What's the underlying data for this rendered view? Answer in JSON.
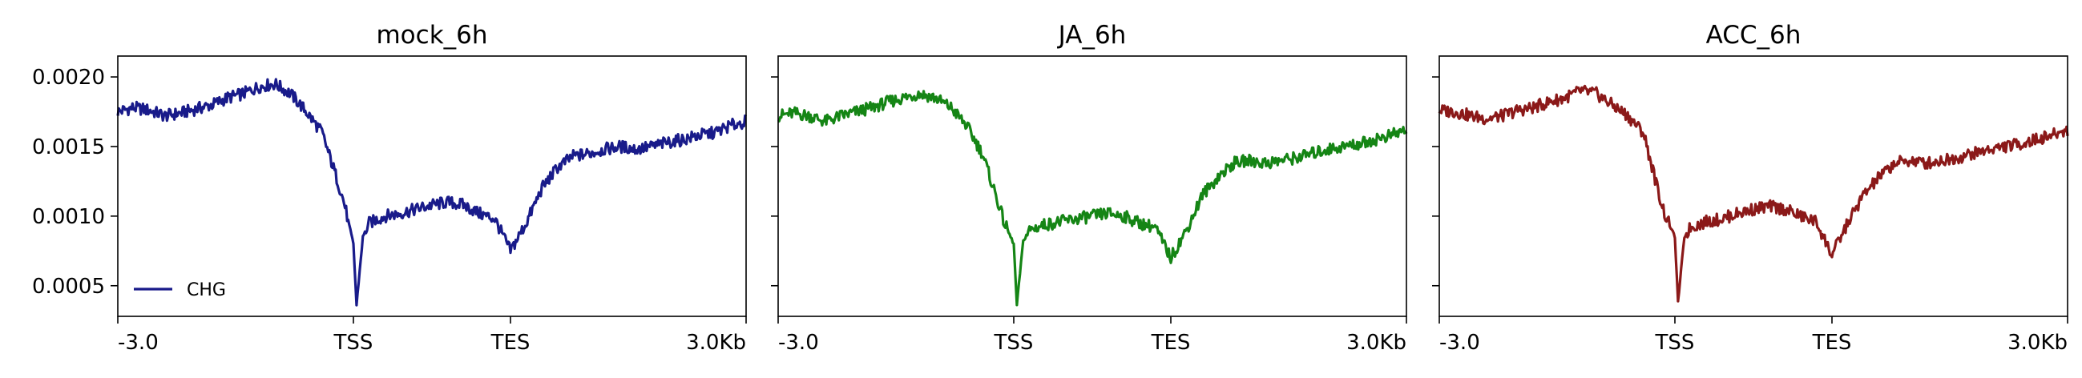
{
  "chart_data": [
    {
      "type": "line",
      "title": "mock_6h",
      "color": "#191b8a",
      "xlabel": "",
      "ylabel": "",
      "x_ticks": [
        "-3.0",
        "TSS",
        "TES",
        "3.0Kb"
      ],
      "ylim": [
        0.00028,
        0.00215
      ],
      "y_ticks": [
        "0.0005",
        "0.0010",
        "0.0015",
        "0.0020"
      ],
      "legend": {
        "label": "CHG",
        "position": "lower-left"
      },
      "series": [
        {
          "name": "CHG",
          "x": [
            0,
            5,
            10,
            15,
            20,
            25,
            30,
            35,
            40,
            45,
            50,
            55,
            60,
            65,
            70,
            72,
            75,
            76,
            78,
            80,
            85,
            90,
            95,
            100,
            105,
            110,
            115,
            120,
            125,
            130,
            135,
            140,
            145,
            150,
            155,
            160,
            165,
            170,
            175,
            180,
            185,
            190,
            195,
            200
          ],
          "y": [
            0.00175,
            0.00178,
            0.00176,
            0.00172,
            0.00174,
            0.00177,
            0.0018,
            0.00185,
            0.00188,
            0.00193,
            0.00195,
            0.00188,
            0.00175,
            0.0016,
            0.00125,
            0.0011,
            0.0008,
            0.00036,
            0.00085,
            0.00095,
            0.001,
            0.00102,
            0.00105,
            0.00108,
            0.0011,
            0.00108,
            0.00102,
            0.00098,
            0.00075,
            0.00095,
            0.0012,
            0.00135,
            0.00143,
            0.00145,
            0.00148,
            0.0015,
            0.00148,
            0.0015,
            0.00153,
            0.00155,
            0.00158,
            0.0016,
            0.00165,
            0.00168
          ]
        }
      ]
    },
    {
      "type": "line",
      "title": "JA_6h",
      "color": "#158515",
      "xlabel": "",
      "ylabel": "",
      "x_ticks": [
        "-3.0",
        "TSS",
        "TES",
        "3.0Kb"
      ],
      "ylim": [
        0.00028,
        0.00215
      ],
      "y_ticks": [
        "0.0005",
        "0.0010",
        "0.0015",
        "0.0020"
      ],
      "series": [
        {
          "x": [
            0,
            5,
            10,
            15,
            20,
            25,
            30,
            35,
            40,
            45,
            50,
            55,
            60,
            65,
            70,
            72,
            75,
            76,
            78,
            80,
            85,
            90,
            95,
            100,
            105,
            110,
            115,
            120,
            125,
            130,
            135,
            140,
            145,
            150,
            155,
            160,
            165,
            170,
            175,
            180,
            185,
            190,
            195,
            200
          ],
          "y": [
            0.00172,
            0.00174,
            0.00172,
            0.00168,
            0.00172,
            0.00175,
            0.00178,
            0.00182,
            0.00185,
            0.00188,
            0.00185,
            0.00178,
            0.00165,
            0.00145,
            0.0011,
            0.00095,
            0.0008,
            0.00036,
            0.00082,
            0.0009,
            0.00094,
            0.00096,
            0.00098,
            0.001,
            0.00102,
            0.001,
            0.00095,
            0.00092,
            0.0007,
            0.0009,
            0.00115,
            0.00128,
            0.00138,
            0.0014,
            0.00138,
            0.0014,
            0.00142,
            0.00145,
            0.00148,
            0.0015,
            0.00152,
            0.00155,
            0.00158,
            0.00162
          ]
        }
      ]
    },
    {
      "type": "line",
      "title": "ACC_6h",
      "color": "#8b1919",
      "xlabel": "",
      "ylabel": "",
      "x_ticks": [
        "-3.0",
        "TSS",
        "TES",
        "3.0Kb"
      ],
      "ylim": [
        0.00028,
        0.00215
      ],
      "y_ticks": [
        "0.0005",
        "0.0010",
        "0.0015",
        "0.0020"
      ],
      "series": [
        {
          "x": [
            0,
            5,
            10,
            15,
            20,
            25,
            30,
            35,
            40,
            45,
            50,
            55,
            60,
            65,
            70,
            72,
            75,
            76,
            78,
            80,
            85,
            90,
            95,
            100,
            105,
            110,
            115,
            120,
            125,
            130,
            135,
            140,
            145,
            150,
            155,
            160,
            165,
            170,
            175,
            180,
            185,
            190,
            195,
            200
          ],
          "y": [
            0.00176,
            0.00175,
            0.00172,
            0.0017,
            0.00172,
            0.00176,
            0.00178,
            0.00182,
            0.00185,
            0.0019,
            0.00188,
            0.0018,
            0.00172,
            0.0016,
            0.00115,
            0.001,
            0.00085,
            0.00038,
            0.00085,
            0.00092,
            0.00096,
            0.00098,
            0.00102,
            0.00105,
            0.00107,
            0.00105,
            0.001,
            0.00096,
            0.00072,
            0.00095,
            0.00115,
            0.00128,
            0.00138,
            0.0014,
            0.00138,
            0.0014,
            0.00142,
            0.00145,
            0.00148,
            0.0015,
            0.00152,
            0.00155,
            0.00158,
            0.00162
          ]
        }
      ]
    }
  ]
}
